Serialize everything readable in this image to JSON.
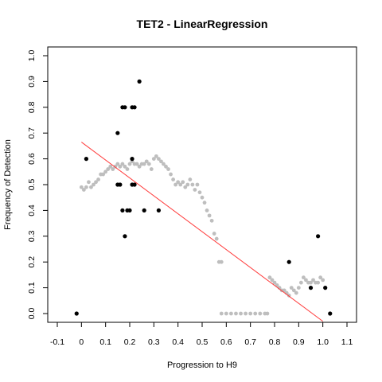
{
  "chart_data": {
    "type": "scatter",
    "title": "TET2 - LinearRegression",
    "xlabel": "Progression to H9",
    "ylabel": "Frequency of Detection",
    "xlim": [
      -0.1,
      1.1
    ],
    "ylim": [
      0.0,
      1.0
    ],
    "xticks": [
      "-0.1",
      "0",
      "0.1",
      "0.2",
      "0.3",
      "0.4",
      "0.5",
      "0.6",
      "0.7",
      "0.8",
      "0.9",
      "1.0",
      "1.1"
    ],
    "yticks": [
      "0.0",
      "0.1",
      "0.2",
      "0.3",
      "0.4",
      "0.5",
      "0.6",
      "0.7",
      "0.8",
      "0.9",
      "1.0"
    ],
    "grid": false,
    "series": [
      {
        "kind": "smoothed",
        "color": "#bebebe",
        "points": [
          [
            0.0,
            0.49
          ],
          [
            0.01,
            0.48
          ],
          [
            0.02,
            0.49
          ],
          [
            0.03,
            0.51
          ],
          [
            0.04,
            0.49
          ],
          [
            0.05,
            0.5
          ],
          [
            0.06,
            0.51
          ],
          [
            0.07,
            0.52
          ],
          [
            0.08,
            0.54
          ],
          [
            0.09,
            0.54
          ],
          [
            0.1,
            0.55
          ],
          [
            0.11,
            0.56
          ],
          [
            0.12,
            0.57
          ],
          [
            0.13,
            0.56
          ],
          [
            0.14,
            0.57
          ],
          [
            0.15,
            0.58
          ],
          [
            0.16,
            0.57
          ],
          [
            0.17,
            0.58
          ],
          [
            0.18,
            0.57
          ],
          [
            0.19,
            0.56
          ],
          [
            0.2,
            0.58
          ],
          [
            0.21,
            0.59
          ],
          [
            0.22,
            0.58
          ],
          [
            0.23,
            0.58
          ],
          [
            0.24,
            0.57
          ],
          [
            0.25,
            0.58
          ],
          [
            0.26,
            0.58
          ],
          [
            0.27,
            0.59
          ],
          [
            0.28,
            0.58
          ],
          [
            0.29,
            0.56
          ],
          [
            0.3,
            0.6
          ],
          [
            0.31,
            0.61
          ],
          [
            0.32,
            0.6
          ],
          [
            0.33,
            0.59
          ],
          [
            0.34,
            0.58
          ],
          [
            0.35,
            0.57
          ],
          [
            0.36,
            0.56
          ],
          [
            0.37,
            0.54
          ],
          [
            0.38,
            0.52
          ],
          [
            0.39,
            0.5
          ],
          [
            0.4,
            0.51
          ],
          [
            0.41,
            0.5
          ],
          [
            0.42,
            0.51
          ],
          [
            0.43,
            0.49
          ],
          [
            0.44,
            0.5
          ],
          [
            0.45,
            0.52
          ],
          [
            0.46,
            0.5
          ],
          [
            0.47,
            0.48
          ],
          [
            0.48,
            0.5
          ],
          [
            0.49,
            0.47
          ],
          [
            0.5,
            0.45
          ],
          [
            0.51,
            0.43
          ],
          [
            0.52,
            0.4
          ],
          [
            0.53,
            0.38
          ],
          [
            0.54,
            0.36
          ],
          [
            0.55,
            0.31
          ],
          [
            0.56,
            0.29
          ],
          [
            0.57,
            0.2
          ],
          [
            0.58,
            0.2
          ],
          [
            0.58,
            0.0
          ],
          [
            0.6,
            0.0
          ],
          [
            0.62,
            0.0
          ],
          [
            0.64,
            0.0
          ],
          [
            0.66,
            0.0
          ],
          [
            0.68,
            0.0
          ],
          [
            0.7,
            0.0
          ],
          [
            0.72,
            0.0
          ],
          [
            0.74,
            0.0
          ],
          [
            0.76,
            0.0
          ],
          [
            0.77,
            0.0
          ],
          [
            0.78,
            0.14
          ],
          [
            0.79,
            0.13
          ],
          [
            0.8,
            0.12
          ],
          [
            0.81,
            0.11
          ],
          [
            0.82,
            0.1
          ],
          [
            0.83,
            0.09
          ],
          [
            0.84,
            0.09
          ],
          [
            0.85,
            0.08
          ],
          [
            0.86,
            0.07
          ],
          [
            0.87,
            0.1
          ],
          [
            0.88,
            0.09
          ],
          [
            0.89,
            0.08
          ],
          [
            0.9,
            0.1
          ],
          [
            0.91,
            0.12
          ],
          [
            0.92,
            0.14
          ],
          [
            0.93,
            0.13
          ],
          [
            0.94,
            0.12
          ],
          [
            0.95,
            0.12
          ],
          [
            0.96,
            0.13
          ],
          [
            0.97,
            0.12
          ],
          [
            0.98,
            0.12
          ],
          [
            0.99,
            0.14
          ],
          [
            1.0,
            0.13
          ]
        ]
      },
      {
        "kind": "observed",
        "color": "#000000",
        "points": [
          [
            -0.02,
            0.0
          ],
          [
            0.02,
            0.6
          ],
          [
            0.15,
            0.7
          ],
          [
            0.15,
            0.5
          ],
          [
            0.16,
            0.5
          ],
          [
            0.17,
            0.8
          ],
          [
            0.18,
            0.8
          ],
          [
            0.17,
            0.4
          ],
          [
            0.18,
            0.3
          ],
          [
            0.19,
            0.4
          ],
          [
            0.2,
            0.4
          ],
          [
            0.21,
            0.8
          ],
          [
            0.22,
            0.8
          ],
          [
            0.21,
            0.6
          ],
          [
            0.21,
            0.5
          ],
          [
            0.22,
            0.5
          ],
          [
            0.24,
            0.9
          ],
          [
            0.26,
            0.4
          ],
          [
            0.32,
            0.4
          ],
          [
            0.86,
            0.2
          ],
          [
            0.95,
            0.1
          ],
          [
            0.98,
            0.3
          ],
          [
            1.01,
            0.1
          ],
          [
            1.03,
            0.0
          ]
        ]
      }
    ],
    "fit_line": {
      "color": "#ff3b3b",
      "x": [
        0.0,
        1.0
      ],
      "y": [
        0.665,
        -0.03
      ]
    }
  }
}
